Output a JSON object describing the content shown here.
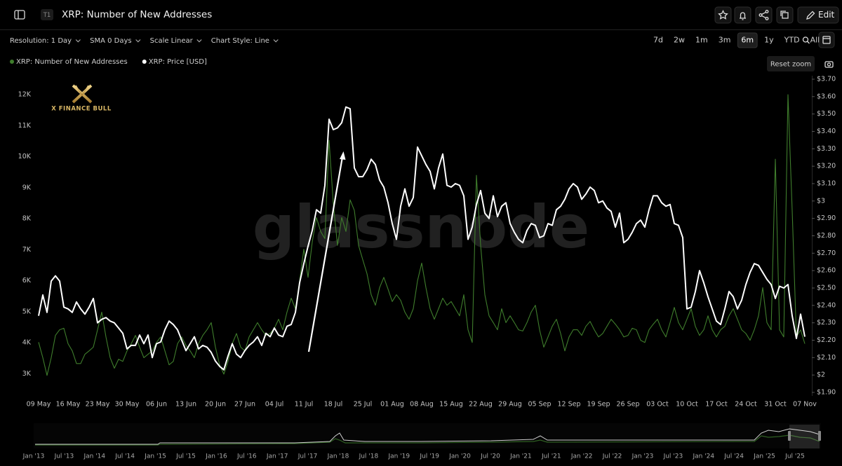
{
  "header": {
    "badge": "T1",
    "title": "XRP: Number of New Addresses",
    "edit": "Edit"
  },
  "toolbar": {
    "dropdowns": [
      "Resolution: 1 Day",
      "SMA 0 Days",
      "Scale Linear",
      "Chart Style: Line"
    ],
    "ranges": [
      "7d",
      "2w",
      "1m",
      "3m",
      "6m",
      "1y",
      "YTD",
      "All"
    ],
    "active": "6m",
    "reset_zoom": "Reset zoom"
  },
  "chart_data": {
    "type": "line",
    "watermark": "glassnode",
    "logo_text": "X FINANCE BULL",
    "categories": [
      "09 May",
      null,
      null,
      null,
      null,
      null,
      null,
      "16 May",
      null,
      null,
      null,
      null,
      null,
      null,
      "23 May",
      null,
      null,
      null,
      null,
      null,
      null,
      "30 May",
      null,
      null,
      null,
      null,
      null,
      null,
      "06 Jun",
      null,
      null,
      null,
      null,
      null,
      null,
      "13 Jun",
      null,
      null,
      null,
      null,
      null,
      null,
      "20 Jun",
      null,
      null,
      null,
      null,
      null,
      null,
      "27 Jun",
      null,
      null,
      null,
      null,
      null,
      null,
      "04 Jul",
      null,
      null,
      null,
      null,
      null,
      null,
      "11 Jul",
      null,
      null,
      null,
      null,
      null,
      null,
      "18 Jul",
      null,
      null,
      null,
      null,
      null,
      null,
      "25 Jul",
      null,
      null,
      null,
      null,
      null,
      null,
      "01 Aug",
      null,
      null,
      null,
      null,
      null,
      null,
      "08 Aug",
      null,
      null,
      null,
      null,
      null,
      null,
      "15 Aug",
      null,
      null,
      null,
      null,
      null,
      null,
      "22 Aug",
      null,
      null,
      null,
      null,
      null,
      null,
      "29 Aug",
      null,
      null,
      null,
      null,
      null,
      null,
      "05 Sep",
      null,
      null,
      null,
      null,
      null,
      null,
      "12 Sep",
      null,
      null,
      null,
      null,
      null,
      null,
      "19 Sep",
      null,
      null,
      null,
      null,
      null,
      null,
      "26 Sep",
      null,
      null,
      null,
      null,
      null,
      null,
      "03 Oct",
      null,
      null,
      null,
      null,
      null,
      null,
      "10 Oct",
      null,
      null,
      null,
      null,
      null,
      null,
      "17 Oct",
      null,
      null,
      null,
      null,
      null,
      null,
      "24 Oct",
      null,
      null,
      null,
      null,
      null,
      null,
      "31 Oct",
      null,
      null,
      null,
      null,
      null,
      null,
      "07 Nov"
    ],
    "series": [
      {
        "name": "XRP: Number of New Addresses",
        "color": "#3f7d2c",
        "axis": "y",
        "values": [
          4020,
          3520,
          2950,
          3520,
          4240,
          4420,
          4470,
          3970,
          3740,
          3330,
          3330,
          3630,
          3740,
          3860,
          4420,
          4990,
          4190,
          3520,
          3180,
          3470,
          3400,
          3740,
          3970,
          4240,
          3860,
          3520,
          3630,
          3740,
          4010,
          4190,
          3740,
          3290,
          3400,
          3970,
          4190,
          3920,
          3740,
          3520,
          3970,
          4240,
          4420,
          4650,
          3860,
          3290,
          2990,
          3400,
          3970,
          4300,
          3860,
          3740,
          4190,
          4420,
          4650,
          4420,
          4240,
          4300,
          4470,
          4760,
          4420,
          4990,
          5440,
          5100,
          6000,
          7020,
          6110,
          7250,
          8040,
          7590,
          7360,
          10530,
          8490,
          7140,
          8040,
          7590,
          8610,
          8270,
          7140,
          6680,
          6230,
          5550,
          5210,
          5780,
          6110,
          5730,
          5330,
          5550,
          5370,
          4990,
          4760,
          5100,
          6000,
          6570,
          5780,
          5100,
          4760,
          5100,
          5440,
          5210,
          5330,
          5100,
          4870,
          5550,
          4420,
          4010,
          9400,
          7140,
          5550,
          4870,
          4650,
          4420,
          5100,
          4650,
          4870,
          4650,
          4420,
          4380,
          4650,
          4990,
          5210,
          4420,
          3860,
          4190,
          4530,
          4760,
          4300,
          3740,
          4190,
          4420,
          4420,
          4240,
          4530,
          4690,
          4420,
          4190,
          4300,
          4530,
          4760,
          4600,
          4420,
          4190,
          4240,
          4470,
          4420,
          4080,
          4010,
          4420,
          4600,
          4760,
          4420,
          4190,
          4650,
          5140,
          4650,
          4420,
          4760,
          5100,
          4530,
          4240,
          4420,
          4870,
          4420,
          4190,
          4420,
          4530,
          4870,
          5100,
          4760,
          4420,
          4300,
          4080,
          4420,
          4870,
          5780,
          4650,
          4420,
          9920,
          4420,
          4190,
          12000,
          8270,
          4190,
          4420,
          3970
        ]
      },
      {
        "name": "XRP: Price [USD]",
        "color": "#ffffff",
        "axis": "y2",
        "values": [
          2.34,
          2.46,
          2.36,
          2.54,
          2.57,
          2.54,
          2.39,
          2.38,
          2.36,
          2.42,
          2.38,
          2.35,
          2.39,
          2.44,
          2.3,
          2.32,
          2.33,
          2.31,
          2.3,
          2.27,
          2.24,
          2.15,
          2.17,
          2.17,
          2.23,
          2.18,
          2.23,
          2.1,
          2.18,
          2.19,
          2.26,
          2.31,
          2.29,
          2.26,
          2.2,
          2.14,
          2.18,
          2.22,
          2.15,
          2.17,
          2.16,
          2.13,
          2.08,
          2.05,
          2.03,
          2.11,
          2.18,
          2.12,
          2.1,
          2.14,
          2.17,
          2.19,
          2.22,
          2.17,
          2.24,
          2.22,
          2.27,
          2.23,
          2.22,
          2.28,
          2.29,
          2.36,
          2.53,
          2.64,
          2.74,
          2.83,
          2.95,
          2.93,
          3.09,
          3.47,
          3.41,
          3.42,
          3.45,
          3.54,
          3.53,
          3.19,
          3.14,
          3.14,
          3.18,
          3.24,
          3.21,
          3.12,
          3.08,
          2.99,
          2.87,
          2.78,
          2.97,
          3.07,
          2.97,
          3.02,
          3.31,
          3.26,
          3.21,
          3.17,
          3.07,
          3.19,
          3.27,
          3.09,
          3.08,
          3.1,
          3.09,
          3.03,
          2.78,
          2.85,
          2.98,
          3.06,
          2.93,
          2.9,
          3.03,
          2.91,
          2.97,
          2.99,
          2.87,
          2.82,
          2.78,
          2.76,
          2.83,
          2.87,
          2.86,
          2.79,
          2.8,
          2.87,
          2.86,
          2.95,
          2.97,
          3.01,
          3.07,
          3.1,
          3.08,
          3.01,
          3.04,
          3.08,
          3.06,
          2.99,
          3.0,
          2.96,
          2.94,
          2.85,
          2.93,
          2.76,
          2.78,
          2.82,
          2.87,
          2.89,
          2.85,
          2.95,
          3.03,
          3.03,
          2.99,
          2.97,
          2.98,
          2.87,
          2.86,
          2.79,
          2.38,
          2.39,
          2.48,
          2.6,
          2.53,
          2.45,
          2.38,
          2.31,
          2.29,
          2.38,
          2.48,
          2.45,
          2.38,
          2.43,
          2.52,
          2.59,
          2.64,
          2.63,
          2.59,
          2.55,
          2.52,
          2.44,
          2.51,
          2.5,
          2.52,
          2.34,
          2.21,
          2.35,
          2.22
        ]
      }
    ],
    "ylim": [
      2400,
      12500
    ],
    "yticks": [
      {
        "value": 3000,
        "label": "3K"
      },
      {
        "value": 4000,
        "label": "4K"
      },
      {
        "value": 5000,
        "label": "5K"
      },
      {
        "value": 6000,
        "label": "6K"
      },
      {
        "value": 7000,
        "label": "7K"
      },
      {
        "value": 8000,
        "label": "8K"
      },
      {
        "value": 9000,
        "label": "9K"
      },
      {
        "value": 10000,
        "label": "10K"
      },
      {
        "value": 11000,
        "label": "11K"
      },
      {
        "value": 12000,
        "label": "12K"
      }
    ],
    "y2lim": [
      1.9,
      3.7
    ],
    "y2ticks": [
      {
        "value": 1.9,
        "label": "$1.90"
      },
      {
        "value": 2,
        "label": "$2"
      },
      {
        "value": 2.1,
        "label": "$2.10"
      },
      {
        "value": 2.2,
        "label": "$2.20"
      },
      {
        "value": 2.3,
        "label": "$2.30"
      },
      {
        "value": 2.4,
        "label": "$2.40"
      },
      {
        "value": 2.5,
        "label": "$2.50"
      },
      {
        "value": 2.6,
        "label": "$2.60"
      },
      {
        "value": 2.7,
        "label": "$2.70"
      },
      {
        "value": 2.8,
        "label": "$2.80"
      },
      {
        "value": 2.9,
        "label": "$2.90"
      },
      {
        "value": 3,
        "label": "$3"
      },
      {
        "value": 3.1,
        "label": "$3.10"
      },
      {
        "value": 3.2,
        "label": "$3.20"
      },
      {
        "value": 3.3,
        "label": "$3.30"
      },
      {
        "value": 3.4,
        "label": "$3.40"
      },
      {
        "value": 3.5,
        "label": "$3.50"
      },
      {
        "value": 3.6,
        "label": "$3.60"
      },
      {
        "value": 3.7,
        "label": "$3.70"
      }
    ],
    "grid": false
  },
  "navigator": {
    "labels": [
      "Jan '13",
      "Jul '13",
      "Jan '14",
      "Jul '14",
      "Jan '15",
      "Jul '15",
      "Jan '16",
      "Jul '16",
      "Jan '17",
      "Jul '17",
      "Jan '18",
      "Jul '18",
      "Jan '19",
      "Jul '19",
      "Jan '20",
      "Jul '20",
      "Jan '21",
      "Jul '21",
      "Jan '22",
      "Jul '22",
      "Jan '23",
      "Jul '23",
      "Jan '24",
      "Jul '24",
      "Jan '25",
      "Jul '25"
    ]
  }
}
